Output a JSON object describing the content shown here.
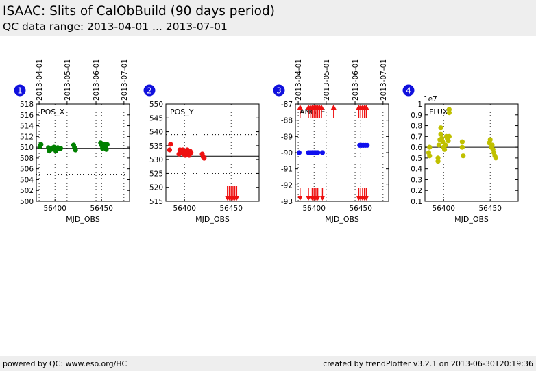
{
  "header": {
    "title": "ISAAC: Slits of CalObBuild (90 days period)",
    "subtitle": "QC data range: 2013-04-01 ... 2013-07-01"
  },
  "footer": {
    "left": "powered by QC: www.eso.org/HC",
    "right": "created by trendPlotter v3.2.1 on 2013-06-30T20:19:36"
  },
  "colors": {
    "header_bg": "#eeeeee",
    "badge": "#1010dd",
    "pos_x": "#008000",
    "pos_y": "#ee1111",
    "angle_ok": "#1010ee",
    "angle_out": "#ee1111",
    "flux": "#c0c000"
  },
  "chart_data": [
    {
      "type": "scatter",
      "panel": "1",
      "legend": "POS_X",
      "xlabel": "MJD_OBS",
      "xlim": [
        56380,
        56480
      ],
      "xticks": [
        56400,
        56450
      ],
      "top_ticks": [
        "2013-04-01",
        "2013-05-01",
        "2013-06-01",
        "2013-07-01"
      ],
      "top_ticks_mjd": [
        56383,
        56413,
        56444,
        56474
      ],
      "ylim": [
        500,
        518
      ],
      "yticks": [
        500,
        502,
        504,
        506,
        508,
        510,
        512,
        514,
        516,
        518
      ],
      "ylog": false,
      "grid": "dotted",
      "reference": 509.8,
      "limits": [
        505,
        513
      ],
      "color": "#008000",
      "x": [
        56384,
        56385,
        56393,
        56394,
        56396,
        56398,
        56399,
        56400,
        56401,
        56402,
        56403,
        56405,
        56406,
        56420,
        56421,
        56422,
        56449,
        56450,
        56451,
        56452,
        56453,
        56454,
        56455,
        56456
      ],
      "y": [
        510.2,
        510.5,
        509.9,
        509.3,
        509.6,
        509.9,
        510.0,
        509.7,
        509.3,
        509.8,
        509.9,
        509.7,
        509.8,
        510.4,
        509.9,
        509.5,
        510.8,
        510.4,
        509.8,
        510.1,
        510.5,
        510.0,
        509.6,
        510.5
      ]
    },
    {
      "type": "scatter",
      "panel": "2",
      "legend": "POS_Y",
      "xlabel": "MJD_OBS",
      "xlim": [
        56380,
        56480
      ],
      "xticks": [
        56400,
        56450
      ],
      "top_ticks": [],
      "top_ticks_mjd": [],
      "ylim": [
        515,
        550
      ],
      "yticks": [
        515,
        520,
        525,
        530,
        535,
        540,
        545,
        550
      ],
      "ylog": false,
      "grid": "dotted",
      "reference": 531.2,
      "limits": [
        525,
        539
      ],
      "color": "#ee1111",
      "x": [
        56384,
        56385,
        56394,
        56395,
        56396,
        56397,
        56398,
        56399,
        56400,
        56401,
        56402,
        56403,
        56404,
        56405,
        56406,
        56407,
        56419,
        56420,
        56421
      ],
      "y": [
        533.5,
        535.5,
        532,
        533.5,
        532.5,
        533,
        533.5,
        532,
        533,
        531.5,
        532.5,
        533.5,
        532,
        531.5,
        533,
        532.5,
        532,
        531,
        530.5
      ],
      "outliers_x": [
        56446,
        56448,
        56450,
        56452,
        56454,
        56456
      ],
      "outlier_direction": "down"
    },
    {
      "type": "scatter",
      "panel": "3",
      "legend": "ANGLE",
      "xlabel": "MJD_OBS",
      "xlim": [
        56380,
        56480
      ],
      "xticks": [
        56400,
        56450
      ],
      "top_ticks": [
        "2013-04-01",
        "2013-05-01",
        "2013-06-01",
        "2013-07-01"
      ],
      "top_ticks_mjd": [
        56383,
        56413,
        56444,
        56474
      ],
      "ylim": [
        -93,
        -87
      ],
      "yticks": [
        -93,
        -92,
        -91,
        -90,
        -89,
        -88,
        -87
      ],
      "ylog": false,
      "grid": "dotted",
      "color": "#1010ee",
      "x": [
        56384,
        56394,
        56396,
        56398,
        56400,
        56402,
        56404,
        56409,
        56449,
        56451,
        56453,
        56455,
        56457
      ],
      "y": [
        -90.0,
        -90.0,
        -90.0,
        -90.0,
        -90.0,
        -90.0,
        -90.0,
        -90.0,
        -89.55,
        -89.55,
        -89.55,
        -89.55,
        -89.55
      ],
      "outliers_up_x": [
        56385,
        56394,
        56396,
        56398,
        56400,
        56402,
        56404,
        56406,
        56408,
        56421,
        56448,
        56450,
        56452,
        56454,
        56456
      ],
      "outliers_down_x": [
        56385,
        56394,
        56398,
        56400,
        56402,
        56404,
        56409,
        56448,
        56450,
        56452,
        56454,
        56456
      ]
    },
    {
      "type": "scatter",
      "panel": "4",
      "legend": "FLUX",
      "xlabel": "MJD_OBS",
      "scale_label": "1e7",
      "xlim": [
        56380,
        56480
      ],
      "xticks": [
        56400,
        56450
      ],
      "top_ticks": [],
      "top_ticks_mjd": [],
      "ylim": [
        0.1,
        1.0
      ],
      "yticks": [
        0.1,
        0.2,
        0.3,
        0.4,
        0.5,
        0.6,
        0.7,
        0.8,
        0.9,
        1.0
      ],
      "ylog": false,
      "grid": "dotted",
      "reference": 0.6,
      "limits": [],
      "color": "#c0c000",
      "x": [
        56384,
        56385,
        56385,
        56394,
        56394,
        56395,
        56396,
        56397,
        56397,
        56398,
        56399,
        56400,
        56401,
        56402,
        56403,
        56404,
        56405,
        56406,
        56406,
        56406,
        56420,
        56420,
        56421,
        56449,
        56450,
        56451,
        56452,
        56453,
        56454,
        56455,
        56456
      ],
      "y": [
        0.55,
        0.6,
        0.52,
        0.5,
        0.47,
        0.62,
        0.67,
        0.72,
        0.78,
        0.68,
        0.65,
        0.6,
        0.58,
        0.62,
        0.7,
        0.68,
        0.66,
        0.95,
        0.92,
        0.7,
        0.65,
        0.6,
        0.52,
        0.64,
        0.67,
        0.6,
        0.62,
        0.58,
        0.55,
        0.52,
        0.5
      ]
    }
  ]
}
